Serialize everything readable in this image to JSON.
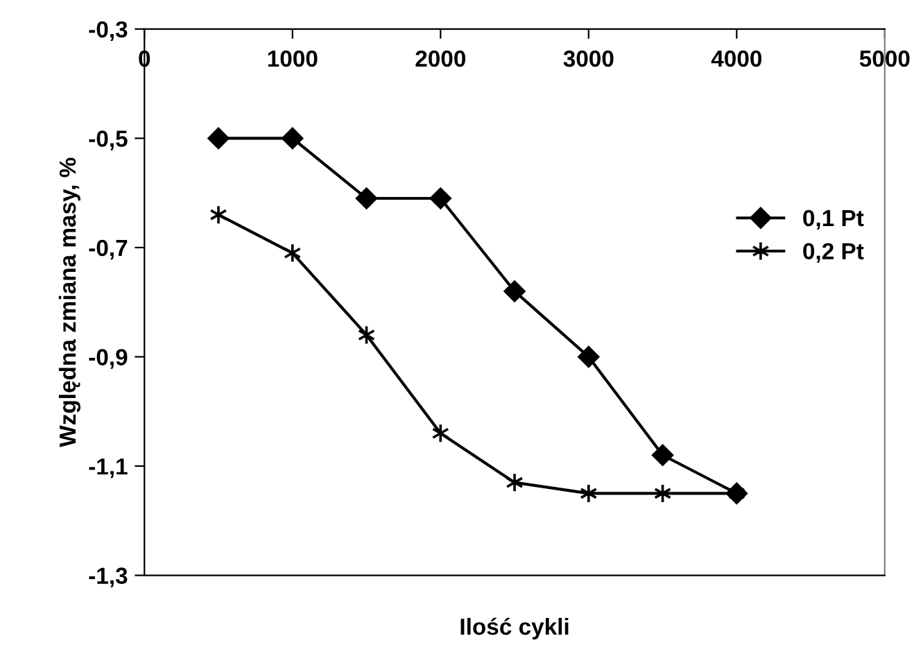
{
  "chart_data": {
    "type": "line",
    "xlabel": "Ilość cykli",
    "ylabel": "Względna zmiana masy, %",
    "x": [
      500,
      1000,
      1500,
      2000,
      2500,
      3000,
      3500,
      4000
    ],
    "series": [
      {
        "name": "0,1 Pt",
        "color": "#000000",
        "marker": "diamond",
        "values": [
          -0.5,
          -0.5,
          -0.61,
          -0.61,
          -0.78,
          -0.9,
          -1.08,
          -1.15
        ]
      },
      {
        "name": "0,2 Pt",
        "color": "#000000",
        "marker": "cross",
        "values": [
          -0.64,
          -0.71,
          -0.86,
          -1.04,
          -1.13,
          -1.15,
          -1.15,
          -1.15
        ]
      }
    ],
    "xlim": [
      0,
      5000
    ],
    "xticks": [
      0,
      1000,
      2000,
      3000,
      4000,
      5000
    ],
    "ylim": [
      -1.3,
      -0.3
    ],
    "yticks": [
      {
        "value": -1.3,
        "label": "-1,3"
      },
      {
        "value": -1.1,
        "label": "-1,1"
      },
      {
        "value": -0.9,
        "label": "-0,9"
      },
      {
        "value": -0.7,
        "label": "-0,7"
      },
      {
        "value": -0.5,
        "label": "-0,5"
      },
      {
        "value": -0.3,
        "label": "-0,3"
      }
    ],
    "grid": false,
    "legend": "right",
    "line_style": "solid"
  }
}
